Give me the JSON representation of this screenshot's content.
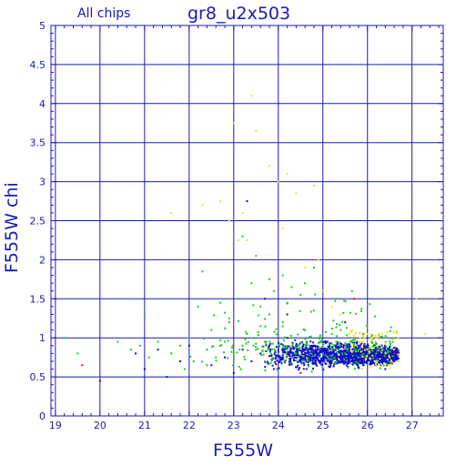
{
  "chart_data": {
    "type": "scatter",
    "title": "gr8_u2x503",
    "subtitle": "All chips",
    "xlabel": "F555W",
    "ylabel": "F555W chi",
    "xlim": [
      18.9,
      27.7
    ],
    "ylim": [
      0,
      5
    ],
    "x_ticks": [
      19,
      20,
      21,
      22,
      23,
      24,
      25,
      26,
      27
    ],
    "y_ticks": [
      0,
      0.5,
      1,
      1.5,
      2,
      2.5,
      3,
      3.5,
      4,
      4.5,
      5
    ],
    "x_tick_labels": [
      "19",
      "20",
      "21",
      "22",
      "23",
      "24",
      "25",
      "26",
      "27"
    ],
    "y_tick_labels": [
      "0",
      "0.5",
      "1",
      "1.5",
      "2",
      "2.5",
      "3",
      "3.5",
      "4",
      "4.5",
      "5"
    ],
    "grid": true,
    "colors": {
      "axis": "#1a1ab4",
      "grid": "#1a1ab4",
      "blue": "#1010c8",
      "green": "#22cc22",
      "yellow": "#f0e020",
      "red": "#e01010"
    },
    "series": [
      {
        "color": "#22cc22",
        "x": [
          19.2,
          19.5,
          20.4,
          20.7,
          20.9,
          21.0,
          21.1,
          21.3,
          21.6,
          21.8,
          22.0,
          22.1,
          22.2,
          22.4,
          22.5,
          22.6,
          22.8,
          22.9,
          23.0,
          23.1,
          23.2,
          23.3,
          23.4,
          23.5,
          23.6,
          23.7,
          23.8,
          23.9,
          24.0,
          24.1,
          24.2,
          24.3,
          24.4,
          24.5,
          24.6,
          24.7,
          24.8,
          24.9,
          25.0,
          25.1,
          25.2,
          25.3,
          25.4,
          25.5,
          25.6,
          25.7,
          25.8,
          25.9,
          26.0,
          26.1,
          26.2,
          26.3,
          22.3,
          22.7,
          23.5,
          23.8,
          24.1,
          24.6,
          25.0,
          25.3,
          23.2,
          22.9,
          22.4,
          21.9,
          24.8,
          24.3,
          23.6
        ],
        "y": [
          1.0,
          0.8,
          0.95,
          0.85,
          0.9,
          1.3,
          0.75,
          0.95,
          0.8,
          0.9,
          1.0,
          0.7,
          1.4,
          0.85,
          1.1,
          0.75,
          0.95,
          1.2,
          0.8,
          1.5,
          0.9,
          1.05,
          1.7,
          0.85,
          1.15,
          0.95,
          1.3,
          1.6,
          0.9,
          1.2,
          1.45,
          1.0,
          0.8,
          1.55,
          1.1,
          0.9,
          1.35,
          1.0,
          1.2,
          0.85,
          1.05,
          0.95,
          1.1,
          0.8,
          1.0,
          0.9,
          0.75,
          1.05,
          0.85,
          0.95,
          0.8,
          0.9,
          1.85,
          1.45,
          2.05,
          1.75,
          1.8,
          1.7,
          1.6,
          1.5,
          2.3,
          1.25,
          0.65,
          0.6,
          1.9,
          1.65,
          1.4
        ]
      },
      {
        "color": "#f0e020",
        "x": [
          21.6,
          22.3,
          22.7,
          22.9,
          23.0,
          23.2,
          23.3,
          23.4,
          23.5,
          23.8,
          24.0,
          24.2,
          24.4,
          24.6,
          24.9,
          25.0,
          25.2,
          25.4,
          25.6,
          25.8,
          26.0,
          26.2,
          26.4,
          26.5,
          26.6,
          26.7,
          27.1,
          27.3,
          24.8,
          24.1,
          23.1
        ],
        "y": [
          2.6,
          2.7,
          2.75,
          2.5,
          3.75,
          2.6,
          2.25,
          4.1,
          3.65,
          3.2,
          3.0,
          3.1,
          2.85,
          1.9,
          2.0,
          1.6,
          1.4,
          1.3,
          1.05,
          0.95,
          0.85,
          0.9,
          0.8,
          0.75,
          0.85,
          0.7,
          1.5,
          1.05,
          2.95,
          2.4,
          2.25
        ]
      },
      {
        "color": "#e01010",
        "x": [
          19.6,
          25.7,
          26.6,
          24.5
        ],
        "y": [
          0.65,
          1.5,
          0.8,
          0.55
        ]
      },
      {
        "color": "#1010c8",
        "x": [
          20.0,
          20.8,
          21.0,
          21.3,
          21.5,
          21.8,
          22.0,
          22.5,
          22.8,
          23.0,
          23.2,
          23.4,
          23.6,
          23.8,
          23.9,
          24.0,
          24.1,
          24.2,
          24.3,
          24.4,
          24.5,
          24.6,
          24.7,
          24.8,
          24.9,
          25.0,
          25.1,
          25.2,
          25.3,
          25.4,
          25.5,
          25.6,
          25.7,
          25.8,
          25.9,
          26.0,
          26.1,
          26.2,
          26.3,
          26.4,
          26.5,
          26.6,
          23.7,
          24.2,
          25.5,
          23.3
        ],
        "y": [
          0.45,
          0.8,
          0.6,
          0.85,
          0.5,
          0.7,
          0.9,
          0.65,
          0.75,
          0.55,
          0.85,
          0.7,
          0.8,
          0.9,
          0.6,
          0.85,
          0.75,
          1.0,
          0.8,
          0.9,
          0.7,
          0.85,
          0.75,
          0.9,
          0.8,
          0.7,
          0.85,
          0.75,
          0.9,
          0.8,
          0.7,
          0.85,
          0.75,
          0.9,
          0.65,
          0.8,
          0.7,
          0.85,
          0.75,
          0.6,
          0.8,
          0.7,
          1.5,
          1.3,
          1.2,
          2.75
        ]
      }
    ],
    "cloud": {
      "color": "#1010c8",
      "x_range": [
        23.6,
        26.7
      ],
      "y_center": 0.78,
      "y_spread": 0.22
    }
  }
}
